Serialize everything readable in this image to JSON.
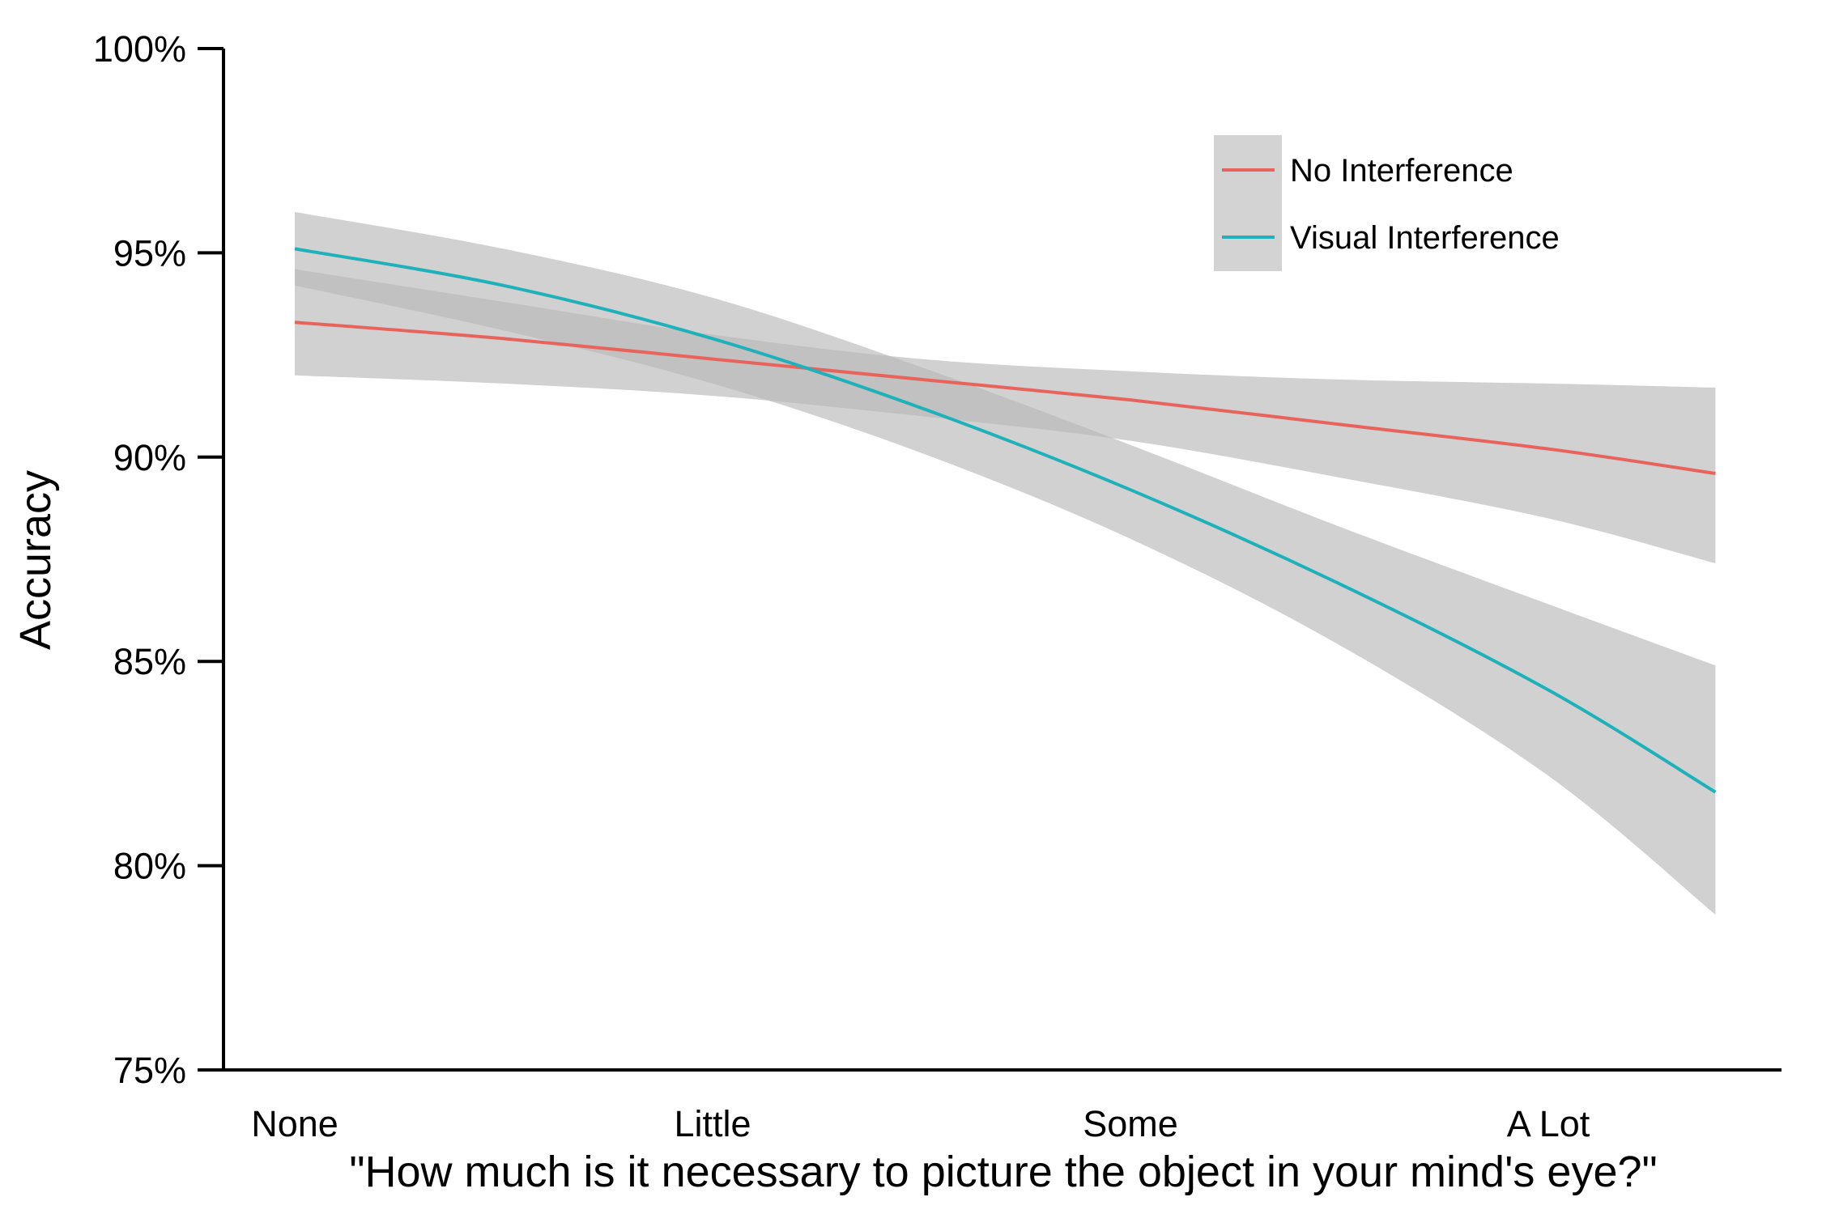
{
  "chart_data": {
    "type": "line",
    "xlabel": "\"How much is it necessary to picture the object in your mind's eye?\"",
    "ylabel": "Accuracy",
    "categories": [
      "None",
      "Little",
      "Some",
      "A Lot"
    ],
    "x_range": [
      0,
      3.4
    ],
    "ylim": [
      75,
      100
    ],
    "yticks": [
      75,
      80,
      85,
      90,
      95,
      100
    ],
    "ytick_labels": [
      "75%",
      "80%",
      "85%",
      "90%",
      "95%",
      "100%"
    ],
    "grid": false,
    "legend_position": "top-right",
    "series": [
      {
        "name": "No Interference",
        "color": "#E8635B",
        "x": [
          0,
          0.5,
          1,
          1.5,
          2,
          2.5,
          3,
          3.4
        ],
        "y": [
          93.3,
          92.9,
          92.4,
          91.9,
          91.4,
          90.8,
          90.2,
          89.6
        ],
        "ci_low": [
          92.0,
          91.8,
          91.5,
          91.0,
          90.4,
          89.5,
          88.5,
          87.4
        ],
        "ci_high": [
          94.6,
          93.8,
          93.0,
          92.4,
          92.1,
          91.9,
          91.8,
          91.7
        ]
      },
      {
        "name": "Visual Interference",
        "color": "#1FB1B9",
        "x": [
          0,
          0.5,
          1,
          1.5,
          2,
          2.5,
          3,
          3.4
        ],
        "y": [
          95.1,
          94.2,
          92.9,
          91.2,
          89.2,
          86.9,
          84.3,
          81.8
        ],
        "ci_low": [
          94.2,
          93.1,
          91.8,
          90.1,
          88.0,
          85.4,
          82.2,
          78.8
        ],
        "ci_high": [
          96.0,
          95.1,
          93.9,
          92.2,
          90.3,
          88.3,
          86.4,
          84.9
        ]
      }
    ]
  },
  "colors": {
    "ci_band": "#B8B8B8",
    "legend_key_bg": "#D3D3D3",
    "axis": "#000000"
  }
}
